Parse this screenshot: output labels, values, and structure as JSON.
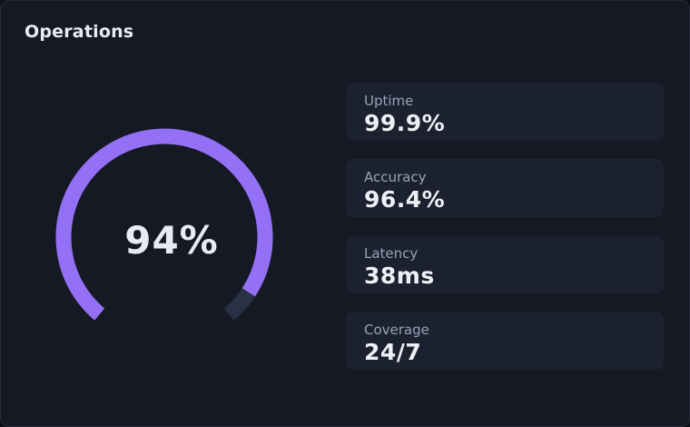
{
  "card": {
    "title": "Operations"
  },
  "gauge": {
    "value_label": "94%",
    "fraction": 0.94,
    "fill_color": "#9370f5",
    "track_color": "#2b3145"
  },
  "stats": [
    {
      "label": "Uptime",
      "value": "99.9%"
    },
    {
      "label": "Accuracy",
      "value": "96.4%"
    },
    {
      "label": "Latency",
      "value": "38ms"
    },
    {
      "label": "Coverage",
      "value": "24/7"
    }
  ]
}
